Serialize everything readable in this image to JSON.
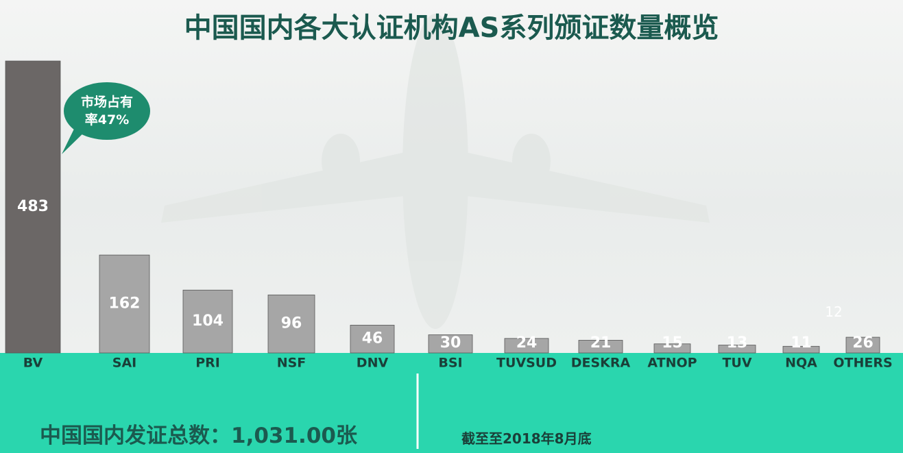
{
  "chart_data": {
    "type": "bar",
    "title": "中国国内各大认证机构AS系列颁证数量概览",
    "categories": [
      "BV",
      "SAI",
      "PRI",
      "NSF",
      "DNV",
      "BSI",
      "TUVSUD",
      "DESKRA",
      "ATNOP",
      "TUV",
      "NQA",
      "OTHERS"
    ],
    "values": [
      483,
      162,
      104,
      96,
      46,
      30,
      24,
      21,
      15,
      13,
      11,
      26
    ],
    "colors": [
      "#6b6766",
      "#a6a6a6",
      "#a6a6a6",
      "#a6a6a6",
      "#a6a6a6",
      "#a6a6a6",
      "#a6a6a6",
      "#a6a6a6",
      "#a6a6a6",
      "#a6a6a6",
      "#a6a6a6",
      "#a6a6a6"
    ],
    "callout": "市场占有率47%",
    "stray_label": "12",
    "footer_total": "中国国内发证总数：1,031.00张",
    "footer_note": "截至至2018年8月底"
  }
}
